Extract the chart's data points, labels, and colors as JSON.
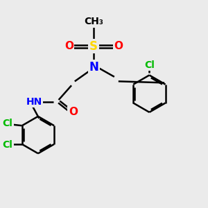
{
  "bg_color": "#ebebeb",
  "atom_colors": {
    "C": "#000000",
    "N": "#0000FF",
    "O": "#FF0000",
    "S": "#FFD700",
    "Cl": "#00BB00"
  },
  "bond_color": "#000000",
  "bond_width": 1.8,
  "dbo": 0.06,
  "fs": 9
}
